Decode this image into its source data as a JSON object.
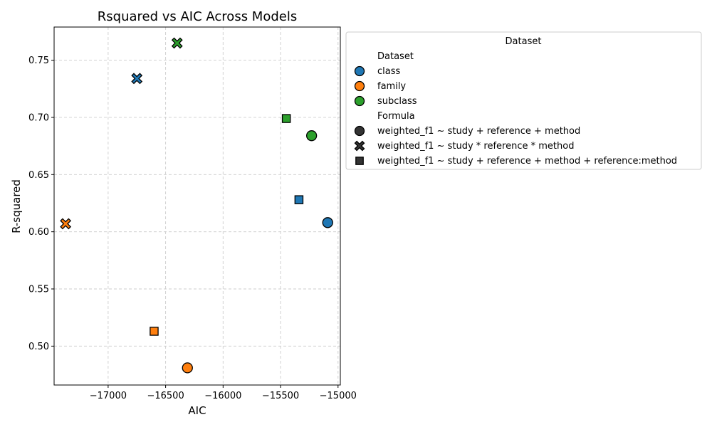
{
  "chart_data": {
    "type": "scatter",
    "title": "Rsquared vs AIC Across Models",
    "xlabel": "AIC",
    "ylabel": "R-squared",
    "xlim": [
      -17470,
      -14980
    ],
    "ylim": [
      0.466,
      0.779
    ],
    "xticks": [
      -17000,
      -16500,
      -16000,
      -15500,
      -15000
    ],
    "yticks": [
      0.5,
      0.55,
      0.6,
      0.65,
      0.7,
      0.75
    ],
    "grid": true,
    "legend": {
      "placement": "outside-right",
      "title": "Dataset",
      "hue_header": "Dataset",
      "style_header": "Formula",
      "hue_entries": [
        {
          "label": "class",
          "color": "#1f77b4"
        },
        {
          "label": "family",
          "color": "#ff7f0e"
        },
        {
          "label": "subclass",
          "color": "#2ca02c"
        }
      ],
      "style_entries": [
        {
          "label": "weighted_f1 ~ study + reference + method",
          "marker": "circle"
        },
        {
          "label": "weighted_f1 ~ study * reference * method",
          "marker": "x"
        },
        {
          "label": "weighted_f1 ~ study + reference + method + reference:method",
          "marker": "square"
        }
      ]
    },
    "points": [
      {
        "dataset": "class",
        "formula": "circle",
        "x": -15090,
        "y": 0.608
      },
      {
        "dataset": "class",
        "formula": "x",
        "x": -16750,
        "y": 0.734
      },
      {
        "dataset": "class",
        "formula": "square",
        "x": -15340,
        "y": 0.628
      },
      {
        "dataset": "family",
        "formula": "circle",
        "x": -16310,
        "y": 0.481
      },
      {
        "dataset": "family",
        "formula": "x",
        "x": -17370,
        "y": 0.607
      },
      {
        "dataset": "family",
        "formula": "square",
        "x": -16600,
        "y": 0.513
      },
      {
        "dataset": "subclass",
        "formula": "circle",
        "x": -15230,
        "y": 0.684
      },
      {
        "dataset": "subclass",
        "formula": "x",
        "x": -16400,
        "y": 0.765
      },
      {
        "dataset": "subclass",
        "formula": "square",
        "x": -15450,
        "y": 0.699
      }
    ]
  }
}
